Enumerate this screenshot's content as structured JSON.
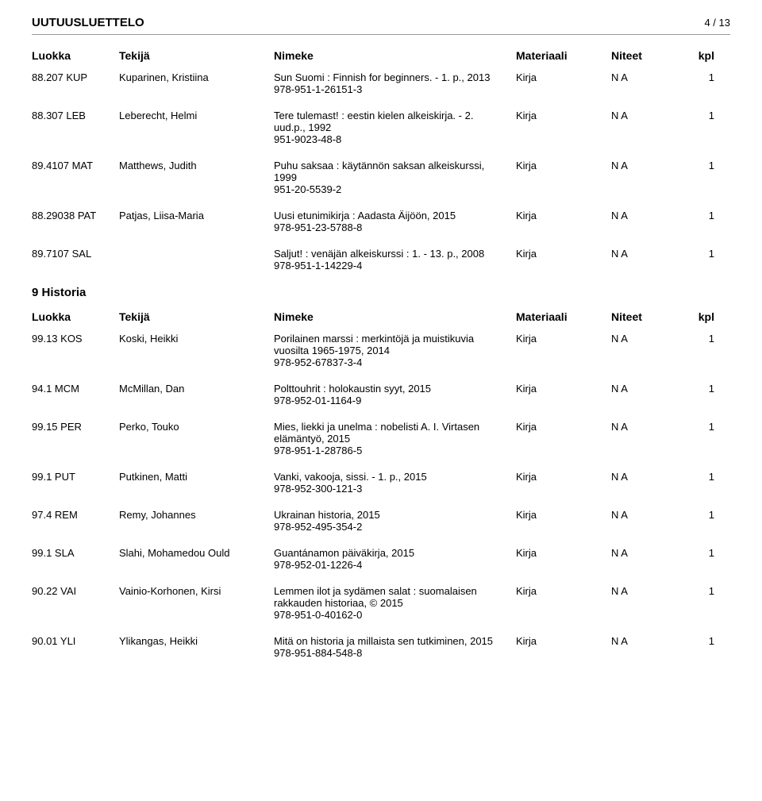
{
  "header": {
    "title": "UUTUUSLUETTELO",
    "page_current": "4",
    "page_sep": " / ",
    "page_total": "13"
  },
  "columns": {
    "luokka": "Luokka",
    "tekija": "Tekijä",
    "nimeke": "Nimeke",
    "materiaali": "Materiaali",
    "niteet": "Niteet",
    "kpl": "kpl"
  },
  "section1": {
    "rows": [
      {
        "luokka": "88.207 KUP",
        "tekija": "Kuparinen, Kristiina",
        "nimeke": "Sun Suomi : Finnish for beginners. - 1. p., 2013",
        "isbn": "978-951-1-26151-3",
        "materiaali": "Kirja",
        "niteet": "N A",
        "kpl": "1"
      },
      {
        "luokka": "88.307 LEB",
        "tekija": "Leberecht, Helmi",
        "nimeke": "Tere tulemast! : eestin kielen alkeiskirja. - 2. uud.p., 1992",
        "isbn": "951-9023-48-8",
        "materiaali": "Kirja",
        "niteet": "N A",
        "kpl": "1"
      },
      {
        "luokka": "89.4107 MAT",
        "tekija": "Matthews, Judith",
        "nimeke": "Puhu saksaa : käytännön saksan alkeiskurssi, 1999",
        "isbn": "951-20-5539-2",
        "materiaali": "Kirja",
        "niteet": "N A",
        "kpl": "1"
      },
      {
        "luokka": "88.29038 PAT",
        "tekija": "Patjas, Liisa-Maria",
        "nimeke": "Uusi etunimikirja : Aadasta Äijöön, 2015",
        "isbn": "978-951-23-5788-8",
        "materiaali": "Kirja",
        "niteet": "N A",
        "kpl": "1"
      },
      {
        "luokka": "89.7107 SAL",
        "tekija": "",
        "nimeke": "Saljut! : venäjän alkeiskurssi : 1. - 13. p., 2008",
        "isbn": "978-951-1-14229-4",
        "materiaali": "Kirja",
        "niteet": "N A",
        "kpl": "1"
      }
    ]
  },
  "section2": {
    "title": "9 Historia",
    "rows": [
      {
        "luokka": "99.13 KOS",
        "tekija": "Koski, Heikki",
        "nimeke": "Porilainen marssi : merkintöjä ja muistikuvia vuosilta 1965-1975, 2014",
        "isbn": "978-952-67837-3-4",
        "materiaali": "Kirja",
        "niteet": "N A",
        "kpl": "1"
      },
      {
        "luokka": "94.1 MCM",
        "tekija": "McMillan, Dan",
        "nimeke": "Polttouhrit : holokaustin syyt, 2015",
        "isbn": "978-952-01-1164-9",
        "materiaali": "Kirja",
        "niteet": "N A",
        "kpl": "1"
      },
      {
        "luokka": "99.15 PER",
        "tekija": "Perko, Touko",
        "nimeke": "Mies, liekki ja unelma : nobelisti A. I. Virtasen elämäntyö, 2015",
        "isbn": "978-951-1-28786-5",
        "materiaali": "Kirja",
        "niteet": "N A",
        "kpl": "1"
      },
      {
        "luokka": "99.1 PUT",
        "tekija": "Putkinen, Matti",
        "nimeke": "Vanki, vakooja, sissi. - 1. p., 2015",
        "isbn": "978-952-300-121-3",
        "materiaali": "Kirja",
        "niteet": "N A",
        "kpl": "1"
      },
      {
        "luokka": "97.4 REM",
        "tekija": "Remy, Johannes",
        "nimeke": "Ukrainan historia, 2015",
        "isbn": "978-952-495-354-2",
        "materiaali": "Kirja",
        "niteet": "N A",
        "kpl": "1"
      },
      {
        "luokka": "99.1 SLA",
        "tekija": "Slahi, Mohamedou Ould",
        "nimeke": "Guantánamon päiväkirja, 2015",
        "isbn": "978-952-01-1226-4",
        "materiaali": "Kirja",
        "niteet": "N A",
        "kpl": "1"
      },
      {
        "luokka": "90.22 VAI",
        "tekija": "Vainio-Korhonen, Kirsi",
        "nimeke": "Lemmen ilot ja sydämen salat : suomalaisen rakkauden historiaa, © 2015",
        "isbn": "978-951-0-40162-0",
        "materiaali": "Kirja",
        "niteet": "N A",
        "kpl": "1"
      },
      {
        "luokka": "90.01 YLI",
        "tekija": "Ylikangas, Heikki",
        "nimeke": "Mitä on historia ja millaista sen tutkiminen, 2015",
        "isbn": "978-951-884-548-8",
        "materiaali": "Kirja",
        "niteet": "N A",
        "kpl": "1"
      }
    ]
  }
}
